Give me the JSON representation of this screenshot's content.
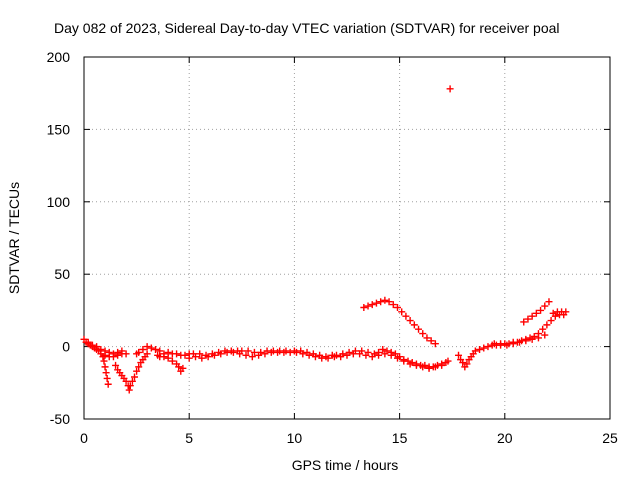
{
  "chart_data": {
    "type": "scatter",
    "title": "Day 082 of 2023, Sidereal Day-to-day VTEC variation (SDTVAR) for receiver poal",
    "xlabel": "GPS time / hours",
    "ylabel": "SDTVAR / TECUs",
    "xlim": [
      0,
      25
    ],
    "ylim": [
      -50,
      200
    ],
    "xticks": [
      "0",
      "5",
      "10",
      "15",
      "20",
      "25"
    ],
    "yticks": [
      "200",
      "150",
      "100",
      "50",
      "0",
      "-50"
    ],
    "grid": true,
    "marker": "plus",
    "series": [
      {
        "name": "sdtvar",
        "color": "#ff0000",
        "points": [
          [
            0.0,
            5
          ],
          [
            0.1,
            3
          ],
          [
            0.2,
            2
          ],
          [
            0.3,
            1
          ],
          [
            0.4,
            0
          ],
          [
            0.5,
            -1
          ],
          [
            0.6,
            -2
          ],
          [
            0.7,
            -3
          ],
          [
            0.8,
            -5
          ],
          [
            0.9,
            -7
          ],
          [
            0.95,
            -10
          ],
          [
            1.0,
            -14
          ],
          [
            1.05,
            -18
          ],
          [
            1.1,
            -22
          ],
          [
            1.15,
            -26
          ],
          [
            0.2,
            3
          ],
          [
            0.4,
            1
          ],
          [
            0.6,
            0
          ],
          [
            0.8,
            -2
          ],
          [
            1.0,
            -3
          ],
          [
            1.2,
            -4
          ],
          [
            1.4,
            -5
          ],
          [
            1.6,
            -4
          ],
          [
            1.8,
            -3
          ],
          [
            1.0,
            -6
          ],
          [
            1.2,
            -7
          ],
          [
            1.4,
            -7
          ],
          [
            1.6,
            -6
          ],
          [
            1.8,
            -5
          ],
          [
            2.0,
            -5
          ],
          [
            1.5,
            -13
          ],
          [
            1.6,
            -16
          ],
          [
            1.7,
            -18
          ],
          [
            1.8,
            -20
          ],
          [
            1.9,
            -22
          ],
          [
            2.0,
            -24
          ],
          [
            2.1,
            -27
          ],
          [
            2.15,
            -30
          ],
          [
            2.2,
            -27
          ],
          [
            2.3,
            -24
          ],
          [
            2.4,
            -21
          ],
          [
            2.5,
            -17
          ],
          [
            2.6,
            -14
          ],
          [
            2.7,
            -11
          ],
          [
            2.8,
            -9
          ],
          [
            2.9,
            -7
          ],
          [
            3.0,
            -5
          ],
          [
            2.5,
            -5
          ],
          [
            2.6,
            -4
          ],
          [
            2.8,
            -2
          ],
          [
            3.0,
            0
          ],
          [
            3.2,
            -1
          ],
          [
            3.4,
            -2
          ],
          [
            3.6,
            -3
          ],
          [
            3.5,
            -6
          ],
          [
            3.6,
            -7
          ],
          [
            3.8,
            -7
          ],
          [
            4.0,
            -8
          ],
          [
            4.2,
            -10
          ],
          [
            4.4,
            -12
          ],
          [
            4.5,
            -14
          ],
          [
            4.6,
            -17
          ],
          [
            4.7,
            -15
          ],
          [
            3.8,
            -5
          ],
          [
            4.0,
            -4
          ],
          [
            4.2,
            -5
          ],
          [
            4.4,
            -5
          ],
          [
            4.6,
            -6
          ],
          [
            4.8,
            -6
          ],
          [
            5.0,
            -5
          ],
          [
            5.0,
            -8
          ],
          [
            5.3,
            -7
          ],
          [
            5.6,
            -8
          ],
          [
            5.9,
            -7
          ],
          [
            6.2,
            -6
          ],
          [
            6.5,
            -5
          ],
          [
            6.8,
            -4
          ],
          [
            7.1,
            -4
          ],
          [
            5.2,
            -5
          ],
          [
            5.5,
            -5
          ],
          [
            5.8,
            -6
          ],
          [
            6.1,
            -5
          ],
          [
            6.4,
            -4
          ],
          [
            6.7,
            -3
          ],
          [
            7.0,
            -3
          ],
          [
            7.3,
            -3
          ],
          [
            7.4,
            -5
          ],
          [
            7.7,
            -6
          ],
          [
            8.0,
            -7
          ],
          [
            8.3,
            -6
          ],
          [
            8.6,
            -5
          ],
          [
            8.9,
            -4
          ],
          [
            9.2,
            -4
          ],
          [
            9.5,
            -4
          ],
          [
            7.5,
            -3
          ],
          [
            7.8,
            -3
          ],
          [
            8.1,
            -4
          ],
          [
            8.4,
            -4
          ],
          [
            8.7,
            -3
          ],
          [
            9.0,
            -3
          ],
          [
            9.3,
            -3
          ],
          [
            9.6,
            -3
          ],
          [
            9.8,
            -4
          ],
          [
            10.1,
            -4
          ],
          [
            10.4,
            -5
          ],
          [
            10.7,
            -6
          ],
          [
            11.0,
            -7
          ],
          [
            11.3,
            -8
          ],
          [
            11.6,
            -8
          ],
          [
            11.9,
            -7
          ],
          [
            10.0,
            -3
          ],
          [
            10.3,
            -3
          ],
          [
            10.6,
            -4
          ],
          [
            10.9,
            -5
          ],
          [
            11.2,
            -6
          ],
          [
            11.5,
            -7
          ],
          [
            11.8,
            -6
          ],
          [
            12.0,
            -6
          ],
          [
            12.3,
            -5
          ],
          [
            12.6,
            -4
          ],
          [
            12.9,
            -3
          ],
          [
            13.2,
            -3
          ],
          [
            13.5,
            -4
          ],
          [
            13.8,
            -5
          ],
          [
            14.0,
            -6
          ],
          [
            12.2,
            -7
          ],
          [
            12.5,
            -6
          ],
          [
            12.8,
            -5
          ],
          [
            13.1,
            -5
          ],
          [
            13.4,
            -6
          ],
          [
            13.7,
            -7
          ],
          [
            14.0,
            -4
          ],
          [
            13.3,
            27
          ],
          [
            13.5,
            28
          ],
          [
            13.7,
            29
          ],
          [
            13.9,
            30
          ],
          [
            14.1,
            31
          ],
          [
            14.3,
            32
          ],
          [
            14.5,
            31
          ],
          [
            14.7,
            29
          ],
          [
            14.9,
            27
          ],
          [
            15.1,
            24
          ],
          [
            15.3,
            21
          ],
          [
            15.5,
            18
          ],
          [
            15.7,
            15
          ],
          [
            15.9,
            12
          ],
          [
            16.1,
            9
          ],
          [
            16.3,
            6
          ],
          [
            16.5,
            4
          ],
          [
            16.7,
            2
          ],
          [
            14.2,
            -2
          ],
          [
            14.4,
            -3
          ],
          [
            14.6,
            -4
          ],
          [
            14.8,
            -5
          ],
          [
            15.0,
            -7
          ],
          [
            15.2,
            -9
          ],
          [
            15.4,
            -10
          ],
          [
            15.6,
            -11
          ],
          [
            15.8,
            -12
          ],
          [
            16.0,
            -13
          ],
          [
            16.2,
            -13
          ],
          [
            16.4,
            -14
          ],
          [
            16.6,
            -14
          ],
          [
            16.8,
            -13
          ],
          [
            17.0,
            -12
          ],
          [
            17.2,
            -11
          ],
          [
            14.3,
            -5
          ],
          [
            14.6,
            -6
          ],
          [
            14.9,
            -8
          ],
          [
            15.2,
            -10
          ],
          [
            15.5,
            -12
          ],
          [
            15.8,
            -13
          ],
          [
            16.1,
            -14
          ],
          [
            16.4,
            -15
          ],
          [
            16.7,
            -14
          ],
          [
            17.0,
            -13
          ],
          [
            17.3,
            -10
          ],
          [
            17.4,
            178
          ],
          [
            17.8,
            -6
          ],
          [
            17.9,
            -9
          ],
          [
            18.0,
            -11
          ],
          [
            18.1,
            -14
          ],
          [
            18.2,
            -12
          ],
          [
            18.3,
            -9
          ],
          [
            18.4,
            -7
          ],
          [
            18.5,
            -5
          ],
          [
            18.6,
            -3
          ],
          [
            18.8,
            -2
          ],
          [
            19.0,
            -1
          ],
          [
            19.2,
            0
          ],
          [
            19.4,
            1
          ],
          [
            19.6,
            1
          ],
          [
            19.8,
            2
          ],
          [
            20.0,
            2
          ],
          [
            20.2,
            2
          ],
          [
            20.4,
            3
          ],
          [
            20.6,
            3
          ],
          [
            20.8,
            4
          ],
          [
            21.0,
            5
          ],
          [
            21.2,
            6
          ],
          [
            21.4,
            7
          ],
          [
            21.6,
            9
          ],
          [
            21.8,
            12
          ],
          [
            22.0,
            15
          ],
          [
            22.2,
            18
          ],
          [
            22.4,
            21
          ],
          [
            22.6,
            22
          ],
          [
            22.8,
            22
          ],
          [
            19.5,
            2
          ],
          [
            19.8,
            1
          ],
          [
            20.1,
            1
          ],
          [
            20.4,
            2
          ],
          [
            20.7,
            3
          ],
          [
            21.0,
            4
          ],
          [
            21.3,
            5
          ],
          [
            21.6,
            6
          ],
          [
            21.9,
            8
          ],
          [
            20.9,
            17
          ],
          [
            21.1,
            19
          ],
          [
            21.3,
            21
          ],
          [
            21.5,
            23
          ],
          [
            21.7,
            25
          ],
          [
            21.9,
            28
          ],
          [
            22.1,
            31
          ],
          [
            22.3,
            23
          ],
          [
            22.5,
            24
          ],
          [
            22.7,
            24
          ],
          [
            22.9,
            24
          ]
        ]
      }
    ]
  }
}
